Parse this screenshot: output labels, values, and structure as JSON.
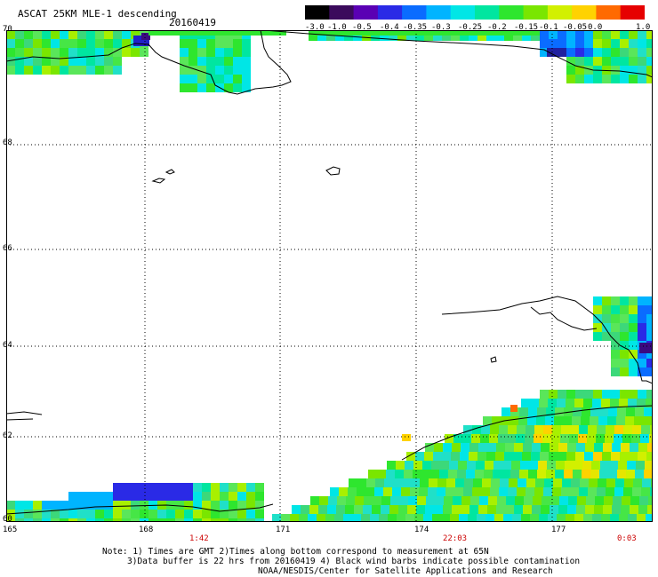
{
  "header": {
    "title": "ASCAT 25KM MLE-1 descending",
    "date": "20160419"
  },
  "colorbar": {
    "labels": [
      "-3.0",
      "-1.0",
      "-0.5",
      "-0.4",
      "-0.35",
      "-0.3",
      "-0.25",
      "-0.2",
      "-0.15",
      "-0.1",
      "-0.05",
      "0.0",
      "1.0"
    ],
    "colors": [
      "#000000",
      "#3b0a5c",
      "#5a00b4",
      "#2a2ae6",
      "#0a6cff",
      "#00b4ff",
      "#00e6e6",
      "#00e6a0",
      "#2ee62e",
      "#7ae600",
      "#d2f000",
      "#ffd200",
      "#ff6a00",
      "#e60000"
    ]
  },
  "map": {
    "lat_labels": [
      "70",
      "68",
      "66",
      "64",
      "62",
      "60"
    ],
    "lon_labels": [
      "165",
      "168",
      "171",
      "174",
      "177"
    ],
    "time_labels": [
      "1:42",
      "22:03",
      "0:03"
    ]
  },
  "notes": {
    "line1": "Note: 1) Times are GMT 2)Times along bottom correspond to measurement at 65N",
    "line2": "3)Data buffer is 22 hrs from 20160419 4) Black wind barbs indicate possible contamination",
    "line3": "NOAA/NESDIS/Center for Satellite Applications and Research"
  }
}
